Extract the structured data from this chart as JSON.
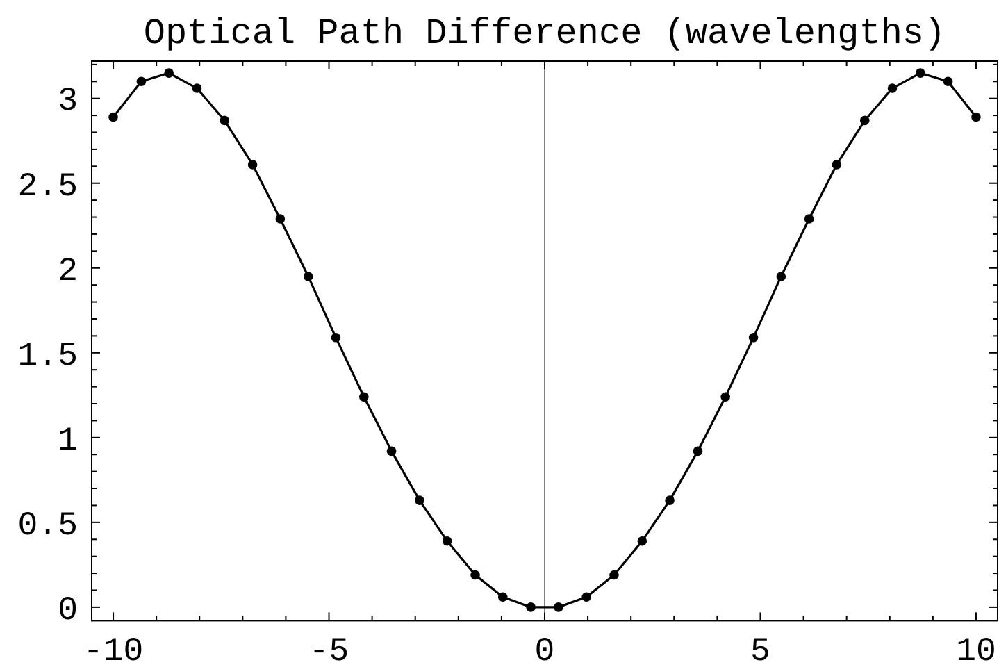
{
  "chart_data": {
    "type": "line",
    "title": "Optical Path Difference (wavelengths)",
    "x": [
      -10,
      -9.35,
      -8.71,
      -8.06,
      -7.42,
      -6.77,
      -6.13,
      -5.48,
      -4.84,
      -4.19,
      -3.55,
      -2.9,
      -2.26,
      -1.61,
      -0.97,
      -0.32,
      0.32,
      0.97,
      1.61,
      2.26,
      2.9,
      3.55,
      4.19,
      4.84,
      5.48,
      6.13,
      6.77,
      7.42,
      8.06,
      8.71,
      9.35,
      10
    ],
    "series": [
      {
        "color": "#000000",
        "values": [
          2.89,
          3.1,
          3.15,
          3.06,
          2.87,
          2.61,
          2.29,
          1.95,
          1.59,
          1.24,
          0.92,
          0.63,
          0.39,
          0.19,
          0.06,
          0.0,
          0.0,
          0.06,
          0.19,
          0.39,
          0.63,
          0.92,
          1.24,
          1.59,
          1.95,
          2.29,
          2.61,
          2.87,
          3.06,
          3.15,
          3.1,
          2.89
        ]
      }
    ],
    "xlim": [
      -10.5,
      10.5
    ],
    "ylim": [
      -0.08,
      3.22
    ],
    "xticks": [
      -10,
      {
        "value": -9,
        "label": null
      },
      {
        "value": -8,
        "label": null
      },
      {
        "value": -7,
        "label": null
      },
      {
        "value": -6,
        "label": null
      },
      -5,
      {
        "value": -4,
        "label": null
      },
      {
        "value": -3,
        "label": null
      },
      {
        "value": -2,
        "label": null
      },
      {
        "value": -1,
        "label": null
      },
      0,
      {
        "value": 1,
        "label": null
      },
      {
        "value": 2,
        "label": null
      },
      {
        "value": 3,
        "label": null
      },
      {
        "value": 4,
        "label": null
      },
      5,
      {
        "value": 6,
        "label": null
      },
      {
        "value": 7,
        "label": null
      },
      {
        "value": 8,
        "label": null
      },
      {
        "value": 9,
        "label": null
      },
      10
    ],
    "yticks": [
      0,
      {
        "value": 0.1,
        "label": null
      },
      {
        "value": 0.2,
        "label": null
      },
      {
        "value": 0.3,
        "label": null
      },
      {
        "value": 0.4,
        "label": null
      },
      0.5,
      {
        "value": 0.6,
        "label": null
      },
      {
        "value": 0.7,
        "label": null
      },
      {
        "value": 0.8,
        "label": null
      },
      {
        "value": 0.9,
        "label": null
      },
      1,
      {
        "value": 1.1,
        "label": null
      },
      {
        "value": 1.2,
        "label": null
      },
      {
        "value": 1.3,
        "label": null
      },
      {
        "value": 1.4,
        "label": null
      },
      1.5,
      {
        "value": 1.6,
        "label": null
      },
      {
        "value": 1.7,
        "label": null
      },
      {
        "value": 1.8,
        "label": null
      },
      {
        "value": 1.9,
        "label": null
      },
      2,
      {
        "value": 2.1,
        "label": null
      },
      {
        "value": 2.2,
        "label": null
      },
      {
        "value": 2.3,
        "label": null
      },
      {
        "value": 2.4,
        "label": null
      },
      2.5,
      {
        "value": 2.6,
        "label": null
      },
      {
        "value": 2.7,
        "label": null
      },
      {
        "value": 2.8,
        "label": null
      },
      {
        "value": 2.9,
        "label": null
      },
      3,
      {
        "value": 3.1,
        "label": null
      },
      {
        "value": 3.2,
        "label": null
      }
    ],
    "marker": "circle",
    "line_style": "solid",
    "ref_lines": [
      {
        "axis": "x",
        "value": 0,
        "color": "#808080"
      }
    ]
  }
}
